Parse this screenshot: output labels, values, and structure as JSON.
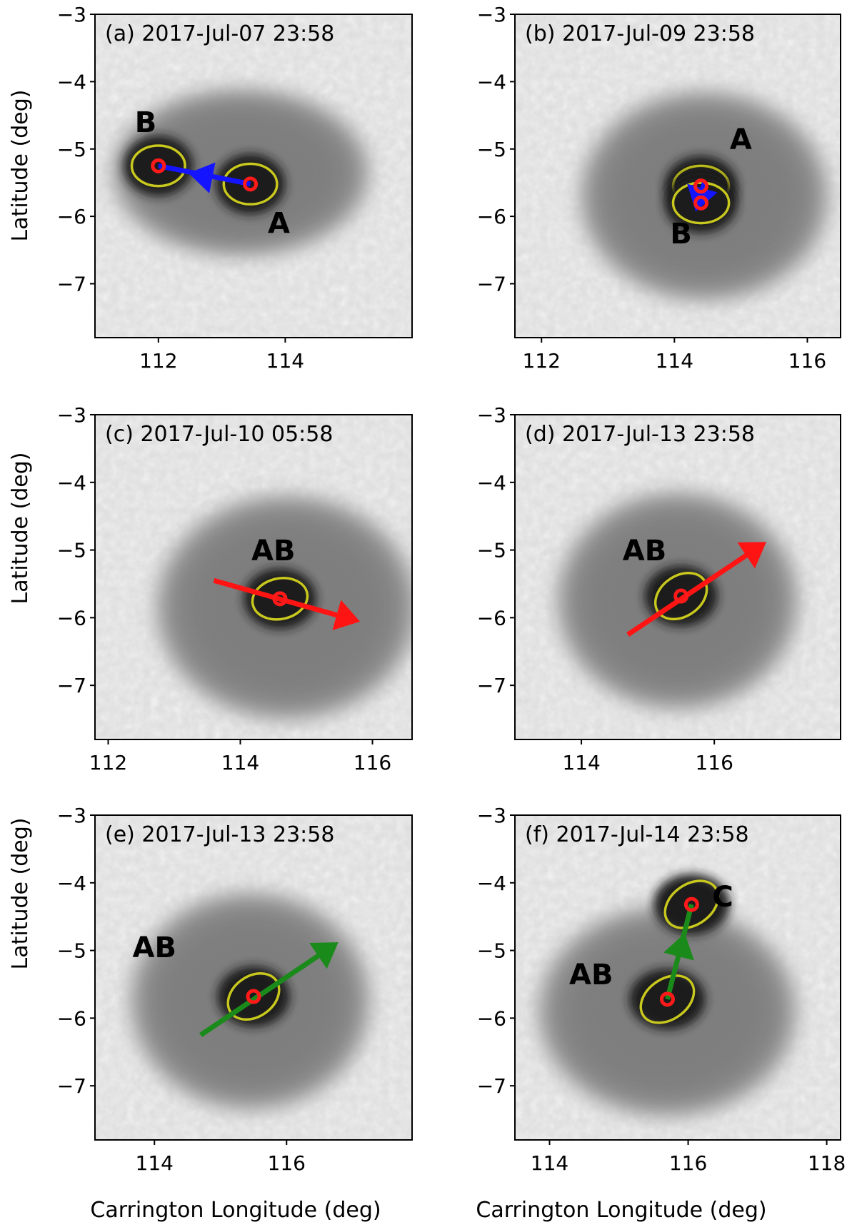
{
  "figure": {
    "ylabel": "Latitude (deg)",
    "xlabel": "Carrington Longitude (deg)",
    "yticks": [
      "−3",
      "−4",
      "−5",
      "−6",
      "−7"
    ],
    "colors": {
      "contour": "#c8c81e",
      "centroid": "#ff1a1a",
      "arrow_blue": "#1414ff",
      "arrow_red": "#ff1414",
      "arrow_green": "#1a8a1a"
    }
  },
  "panels": [
    {
      "title": "(a) 2017-Jul-07 23:58",
      "xlim": [
        111.0,
        116.0
      ],
      "xticks": [
        112,
        114
      ],
      "labels": [
        {
          "text": "B",
          "lon": 111.8,
          "lat": -4.75
        },
        {
          "text": "A",
          "lon": 113.9,
          "lat": -6.25
        }
      ],
      "centroids": [
        {
          "lon": 112.0,
          "lat": -5.25
        },
        {
          "lon": 113.45,
          "lat": -5.52
        }
      ],
      "arrow": {
        "color": "blue",
        "from": [
          112.0,
          -5.25
        ],
        "to": [
          113.45,
          -5.52
        ],
        "head": [
          112.7,
          -5.4
        ],
        "head_dir": -1
      },
      "spot": {
        "lon": 113.3,
        "lat": -5.35,
        "rlon": 1.9,
        "rlat": 1.15
      }
    },
    {
      "title": "(b) 2017-Jul-09 23:58",
      "xlim": [
        111.6,
        116.5
      ],
      "xticks": [
        112,
        114,
        116
      ],
      "labels": [
        {
          "text": "A",
          "lon": 115.0,
          "lat": -5.0
        },
        {
          "text": "B",
          "lon": 114.1,
          "lat": -6.4
        }
      ],
      "centroids": [
        {
          "lon": 114.4,
          "lat": -5.55
        },
        {
          "lon": 114.4,
          "lat": -5.8
        }
      ],
      "arrow": {
        "color": "blue",
        "from": [
          114.45,
          -5.5
        ],
        "to": [
          114.35,
          -5.85
        ],
        "head": [
          114.38,
          -5.72
        ],
        "head_dir": 1
      },
      "spot": {
        "lon": 114.45,
        "lat": -5.7,
        "rlon": 1.75,
        "rlat": 1.45
      }
    },
    {
      "title": "(c) 2017-Jul-10 05:58",
      "xlim": [
        111.8,
        116.6
      ],
      "xticks": [
        112,
        114,
        116
      ],
      "labels": [
        {
          "text": "AB",
          "lon": 114.5,
          "lat": -5.15
        }
      ],
      "centroids": [
        {
          "lon": 114.6,
          "lat": -5.72
        }
      ],
      "arrow": {
        "color": "red",
        "from": [
          113.6,
          -5.45
        ],
        "to": [
          115.6,
          -6.0
        ],
        "head": [
          115.6,
          -6.0
        ],
        "head_dir": 1
      },
      "spot": {
        "lon": 114.7,
        "lat": -5.85,
        "rlon": 1.85,
        "rlat": 1.55
      }
    },
    {
      "title": "(d) 2017-Jul-13 23:58",
      "xlim": [
        113.0,
        117.9
      ],
      "xticks": [
        114,
        116
      ],
      "labels": [
        {
          "text": "AB",
          "lon": 114.95,
          "lat": -5.15
        }
      ],
      "centroids": [
        {
          "lon": 115.5,
          "lat": -5.68
        }
      ],
      "arrow": {
        "color": "red",
        "from": [
          114.7,
          -6.25
        ],
        "to": [
          116.6,
          -5.0
        ],
        "head": [
          116.6,
          -5.0
        ],
        "head_dir": 1
      },
      "spot": {
        "lon": 115.45,
        "lat": -5.75,
        "rlon": 1.7,
        "rlat": 1.5
      }
    },
    {
      "title": "(e) 2017-Jul-13 23:58",
      "xlim": [
        113.1,
        117.9
      ],
      "xticks": [
        114,
        116
      ],
      "labels": [
        {
          "text": "AB",
          "lon": 114.0,
          "lat": -5.1
        }
      ],
      "centroids": [
        {
          "lon": 115.5,
          "lat": -5.68
        }
      ],
      "arrow": {
        "color": "green",
        "from": [
          114.7,
          -6.25
        ],
        "to": [
          116.6,
          -5.0
        ],
        "head": [
          116.6,
          -5.0
        ],
        "head_dir": 1
      },
      "spot": {
        "lon": 115.45,
        "lat": -5.75,
        "rlon": 1.7,
        "rlat": 1.5
      }
    },
    {
      "title": "(f) 2017-Jul-14 23:58",
      "xlim": [
        113.5,
        118.2
      ],
      "xticks": [
        114,
        116,
        118
      ],
      "labels": [
        {
          "text": "C",
          "lon": 116.5,
          "lat": -4.35
        },
        {
          "text": "AB",
          "lon": 114.6,
          "lat": -5.5
        }
      ],
      "centroids": [
        {
          "lon": 115.7,
          "lat": -5.72
        },
        {
          "lon": 116.05,
          "lat": -4.32
        }
      ],
      "arrow": {
        "color": "green",
        "from": [
          115.7,
          -5.72
        ],
        "to": [
          116.05,
          -4.32
        ],
        "head": [
          115.9,
          -4.95
        ],
        "head_dir": 1
      },
      "spot": {
        "lon": 115.7,
        "lat": -5.9,
        "rlon": 1.75,
        "rlat": 1.45
      }
    }
  ]
}
